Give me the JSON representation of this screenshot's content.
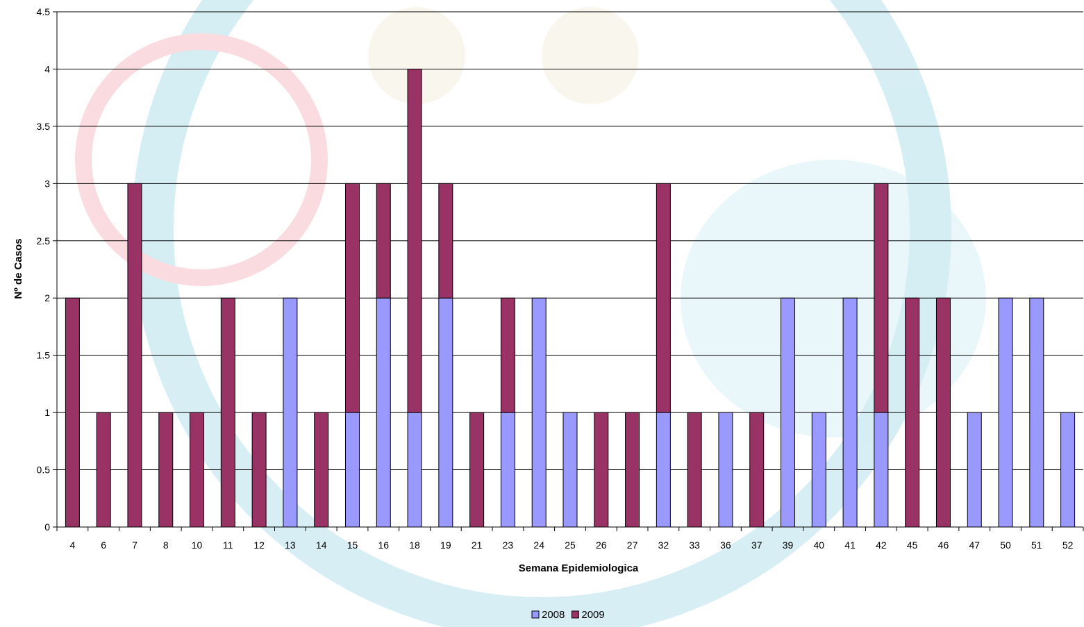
{
  "chart_data": {
    "type": "bar",
    "stacked": true,
    "categories": [
      "4",
      "6",
      "7",
      "8",
      "10",
      "11",
      "12",
      "13",
      "14",
      "15",
      "16",
      "18",
      "19",
      "21",
      "23",
      "24",
      "25",
      "26",
      "27",
      "32",
      "33",
      "36",
      "37",
      "39",
      "40",
      "41",
      "42",
      "45",
      "46",
      "47",
      "50",
      "51",
      "52"
    ],
    "series": [
      {
        "name": "2008",
        "color": "#9999ff",
        "values": [
          0,
          0,
          0,
          0,
          0,
          0,
          0,
          2,
          0,
          1,
          2,
          1,
          2,
          0,
          1,
          2,
          1,
          0,
          0,
          1,
          0,
          1,
          0,
          2,
          1,
          2,
          1,
          0,
          0,
          1,
          2,
          2,
          1
        ]
      },
      {
        "name": "2009",
        "color": "#993366",
        "values": [
          2,
          1,
          3,
          1,
          1,
          2,
          1,
          0,
          1,
          2,
          1,
          3,
          1,
          1,
          1,
          0,
          0,
          1,
          1,
          2,
          1,
          0,
          1,
          0,
          0,
          0,
          2,
          2,
          2,
          0,
          0,
          0,
          0
        ]
      }
    ],
    "xlabel": "Semana Epidemiologica",
    "ylabel": "Nº de Casos",
    "ylim": [
      0,
      4.5
    ],
    "yticks": [
      "0",
      "0.5",
      "1",
      "1.5",
      "2",
      "2.5",
      "3",
      "3.5",
      "4",
      "4.5"
    ],
    "grid": true,
    "legend_position": "bottom-center"
  }
}
